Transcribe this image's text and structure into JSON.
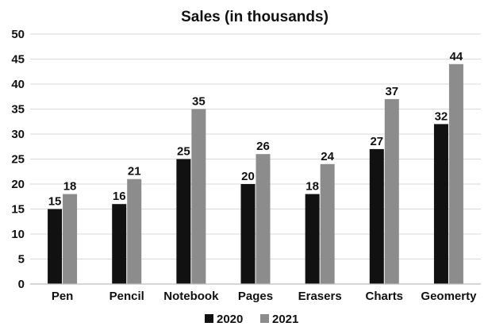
{
  "chart_data": {
    "type": "bar",
    "title": "Sales (in thousands)",
    "xlabel": "",
    "ylabel": "",
    "ylim": [
      0,
      50
    ],
    "yticks": [
      0,
      5,
      10,
      15,
      20,
      25,
      30,
      35,
      40,
      45,
      50
    ],
    "grid": true,
    "legend_position": "bottom",
    "categories": [
      "Pen",
      "Pencil",
      "Notebook",
      "Pages",
      "Erasers",
      "Charts",
      "Geomerty"
    ],
    "series": [
      {
        "name": "2020",
        "color": "#111111",
        "values": [
          15,
          16,
          25,
          20,
          18,
          27,
          32
        ]
      },
      {
        "name": "2021",
        "color": "#8c8c8c",
        "values": [
          18,
          21,
          35,
          26,
          24,
          37,
          44
        ]
      }
    ]
  }
}
